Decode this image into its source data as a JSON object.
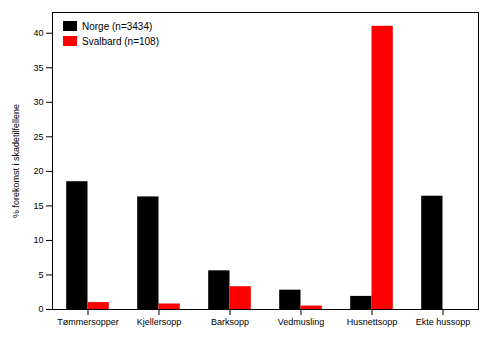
{
  "chart_data": {
    "type": "bar",
    "categories": [
      "Tømmersopper",
      "Kjellersopp",
      "Barksopp",
      "Vedmusling",
      "Husnettsopp",
      "Ekte hussopp"
    ],
    "series": [
      {
        "name": "Norge (n=3434)",
        "color": "#000000",
        "values": [
          18.5,
          16.3,
          5.6,
          2.8,
          1.9,
          16.4
        ]
      },
      {
        "name": "Svalbard (n=108)",
        "color": "#ff0000",
        "values": [
          1.0,
          0.8,
          3.3,
          0.5,
          41.0,
          0.0
        ]
      }
    ],
    "ylabel": "% forekomst i skadetilfellene",
    "ylim": [
      0,
      43
    ],
    "yticks": [
      0,
      5,
      10,
      15,
      20,
      25,
      30,
      35,
      40
    ],
    "legend": "upper left",
    "grid": false
  }
}
